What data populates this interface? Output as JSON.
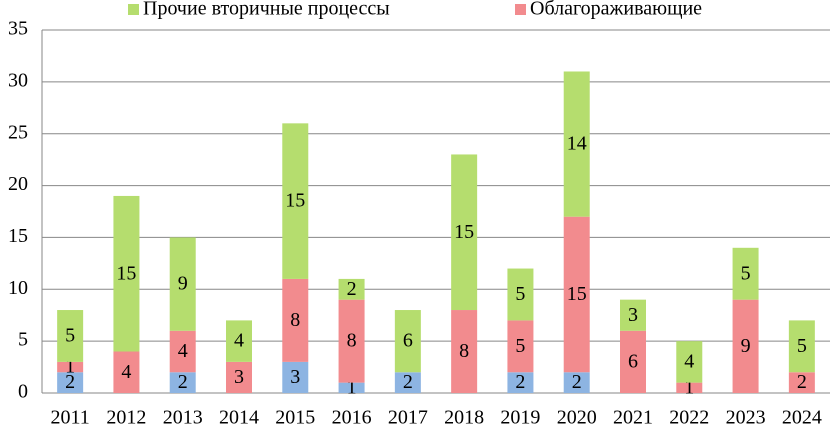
{
  "chart_data": {
    "type": "stacked-bar",
    "categories": [
      "2011",
      "2012",
      "2013",
      "2014",
      "2015",
      "2016",
      "2017",
      "2018",
      "2019",
      "2020",
      "2021",
      "2022",
      "2023",
      "2024"
    ],
    "series": [
      {
        "color": "#8db4e2",
        "values": [
          2,
          0,
          2,
          0,
          3,
          1,
          2,
          0,
          2,
          2,
          0,
          0,
          0,
          0
        ]
      },
      {
        "name": "Облагораживающие",
        "color": "#f28b8e",
        "values": [
          1,
          4,
          4,
          3,
          8,
          8,
          0,
          8,
          5,
          15,
          6,
          1,
          9,
          2
        ]
      },
      {
        "name": "Прочие вторичные процессы",
        "color": "#b5dd6e",
        "values": [
          5,
          15,
          9,
          4,
          15,
          2,
          6,
          15,
          5,
          14,
          3,
          4,
          5,
          5
        ]
      }
    ],
    "ylim": [
      0,
      35
    ],
    "yticks": [
      0,
      5,
      10,
      15,
      20,
      25,
      30,
      35
    ],
    "grid": true
  }
}
